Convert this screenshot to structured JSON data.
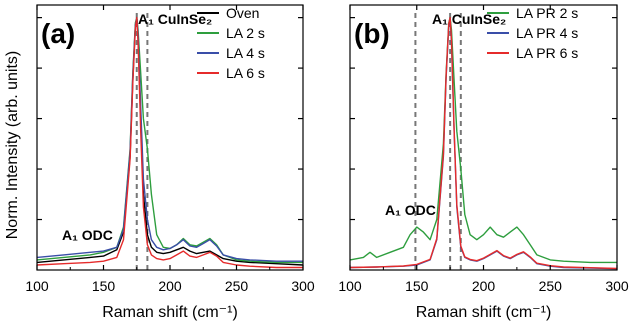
{
  "figure": {
    "shared_ylabel": "Norm. Intensity (arb. units)"
  },
  "chart_data": [
    {
      "type": "line",
      "panel_label": "(a)",
      "xlabel": "Raman shift (cm⁻¹)",
      "ylabel": "Norm. Intensity (arb. units)",
      "xlim": [
        100,
        300
      ],
      "ylim": [
        0,
        1.05
      ],
      "xticks": [
        100,
        150,
        200,
        250,
        300
      ],
      "y_tick_labels_shown": false,
      "grid": false,
      "legend_position": "top-right",
      "annotations": [
        {
          "text": "A₁ CuInSe₂",
          "x": 175,
          "y": 1.02
        },
        {
          "text": "A₁ ODC",
          "x": 137,
          "y": 0.16
        }
      ],
      "reference_lines": [
        {
          "x": 175,
          "style": "dashed",
          "color": "#777777"
        },
        {
          "x": 183,
          "style": "dashed",
          "color": "#777777"
        }
      ],
      "series": [
        {
          "name": "Oven",
          "color": "#000000",
          "x": [
            100,
            120,
            140,
            150,
            160,
            165,
            170,
            172,
            174,
            175,
            176,
            178,
            180,
            183,
            186,
            190,
            195,
            200,
            205,
            210,
            215,
            220,
            225,
            230,
            235,
            240,
            250,
            260,
            280,
            300
          ],
          "y": [
            0.03,
            0.04,
            0.05,
            0.055,
            0.08,
            0.15,
            0.45,
            0.75,
            0.97,
            1.0,
            0.92,
            0.6,
            0.3,
            0.14,
            0.09,
            0.07,
            0.065,
            0.07,
            0.08,
            0.09,
            0.075,
            0.065,
            0.07,
            0.075,
            0.06,
            0.045,
            0.035,
            0.03,
            0.025,
            0.02
          ]
        },
        {
          "name": "LA 2 s",
          "color": "#2e9e3e",
          "x": [
            100,
            120,
            140,
            150,
            160,
            165,
            170,
            172,
            174,
            175,
            176,
            178,
            180,
            183,
            186,
            190,
            195,
            200,
            205,
            210,
            215,
            220,
            225,
            230,
            235,
            240,
            250,
            260,
            280,
            300
          ],
          "y": [
            0.04,
            0.05,
            0.06,
            0.07,
            0.09,
            0.17,
            0.48,
            0.78,
            0.98,
            1.0,
            0.95,
            0.78,
            0.6,
            0.48,
            0.3,
            0.14,
            0.09,
            0.085,
            0.1,
            0.125,
            0.1,
            0.095,
            0.11,
            0.125,
            0.1,
            0.06,
            0.04,
            0.035,
            0.03,
            0.03
          ]
        },
        {
          "name": "LA 4 s",
          "color": "#3a4ea8",
          "x": [
            100,
            120,
            140,
            150,
            160,
            165,
            170,
            172,
            174,
            175,
            176,
            178,
            180,
            183,
            186,
            190,
            195,
            200,
            205,
            210,
            215,
            220,
            225,
            230,
            235,
            240,
            250,
            260,
            280,
            300
          ],
          "y": [
            0.05,
            0.06,
            0.07,
            0.075,
            0.09,
            0.16,
            0.47,
            0.77,
            0.97,
            1.0,
            0.93,
            0.65,
            0.36,
            0.2,
            0.12,
            0.09,
            0.08,
            0.085,
            0.1,
            0.12,
            0.095,
            0.09,
            0.105,
            0.12,
            0.095,
            0.06,
            0.045,
            0.04,
            0.035,
            0.035
          ]
        },
        {
          "name": "LA 6 s",
          "color": "#e52b2b",
          "x": [
            100,
            120,
            140,
            150,
            160,
            165,
            170,
            172,
            174,
            175,
            176,
            178,
            180,
            183,
            186,
            190,
            195,
            200,
            205,
            210,
            215,
            220,
            225,
            230,
            235,
            240,
            250,
            260,
            280,
            300
          ],
          "y": [
            0.02,
            0.025,
            0.03,
            0.035,
            0.05,
            0.12,
            0.44,
            0.74,
            0.96,
            1.0,
            0.9,
            0.55,
            0.25,
            0.1,
            0.06,
            0.045,
            0.04,
            0.045,
            0.06,
            0.075,
            0.055,
            0.05,
            0.06,
            0.07,
            0.055,
            0.03,
            0.02,
            0.015,
            0.01,
            0.01
          ]
        }
      ]
    },
    {
      "type": "line",
      "panel_label": "(b)",
      "xlabel": "Raman shift (cm⁻¹)",
      "ylabel": "",
      "xlim": [
        100,
        300
      ],
      "ylim": [
        0,
        1.05
      ],
      "xticks": [
        100,
        150,
        200,
        250,
        300
      ],
      "y_tick_labels_shown": false,
      "grid": false,
      "legend_position": "top-right",
      "annotations": [
        {
          "text": "A₁ CuInSe₂",
          "x": 175,
          "y": 1.02
        },
        {
          "text": "A₁ ODC",
          "x": 150,
          "y": 0.24
        }
      ],
      "reference_lines": [
        {
          "x": 149,
          "style": "dashed",
          "color": "#777777"
        },
        {
          "x": 175,
          "style": "dashed",
          "color": "#777777"
        },
        {
          "x": 183,
          "style": "dashed",
          "color": "#777777"
        }
      ],
      "series": [
        {
          "name": "LA PR 2 s",
          "color": "#2e9e3e",
          "x": [
            100,
            110,
            115,
            120,
            130,
            140,
            145,
            150,
            155,
            160,
            165,
            170,
            172,
            174,
            175,
            176,
            178,
            180,
            183,
            186,
            190,
            195,
            200,
            205,
            210,
            215,
            220,
            225,
            230,
            235,
            240,
            250,
            260,
            280,
            300
          ],
          "y": [
            0.04,
            0.05,
            0.07,
            0.05,
            0.07,
            0.09,
            0.14,
            0.17,
            0.15,
            0.12,
            0.2,
            0.5,
            0.78,
            0.98,
            1.0,
            0.95,
            0.75,
            0.55,
            0.4,
            0.22,
            0.14,
            0.12,
            0.14,
            0.17,
            0.14,
            0.13,
            0.15,
            0.17,
            0.14,
            0.1,
            0.06,
            0.04,
            0.035,
            0.03,
            0.03
          ]
        },
        {
          "name": "LA PR 4 s",
          "color": "#3a4ea8",
          "x": [
            100,
            120,
            140,
            150,
            160,
            165,
            170,
            172,
            174,
            175,
            176,
            178,
            180,
            183,
            186,
            190,
            195,
            200,
            205,
            210,
            215,
            220,
            225,
            230,
            235,
            240,
            250,
            260,
            280,
            300
          ],
          "y": [
            0.01,
            0.012,
            0.015,
            0.02,
            0.04,
            0.12,
            0.45,
            0.76,
            0.97,
            1.0,
            0.9,
            0.55,
            0.25,
            0.09,
            0.05,
            0.04,
            0.035,
            0.045,
            0.06,
            0.075,
            0.055,
            0.045,
            0.06,
            0.07,
            0.05,
            0.025,
            0.015,
            0.01,
            0.008,
            0.005
          ]
        },
        {
          "name": "LA PR 6 s",
          "color": "#e52b2b",
          "x": [
            100,
            120,
            140,
            150,
            160,
            165,
            170,
            172,
            174,
            175,
            176,
            178,
            180,
            183,
            186,
            190,
            195,
            200,
            205,
            210,
            215,
            220,
            225,
            230,
            235,
            240,
            250,
            260,
            280,
            300
          ],
          "y": [
            0.01,
            0.012,
            0.016,
            0.022,
            0.042,
            0.125,
            0.46,
            0.77,
            0.975,
            1.0,
            0.91,
            0.56,
            0.26,
            0.095,
            0.052,
            0.042,
            0.037,
            0.047,
            0.062,
            0.077,
            0.057,
            0.047,
            0.062,
            0.072,
            0.052,
            0.027,
            0.017,
            0.012,
            0.009,
            0.006
          ]
        }
      ]
    }
  ]
}
